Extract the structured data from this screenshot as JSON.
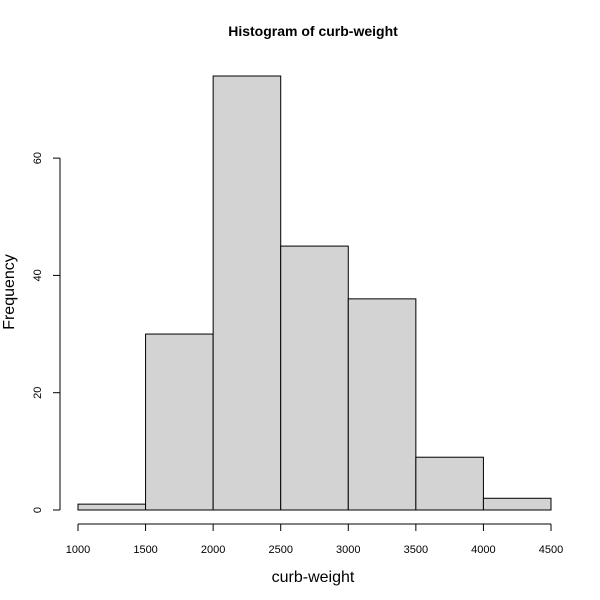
{
  "chart_data": {
    "type": "bar",
    "subtype": "histogram",
    "title": "Histogram of curb-weight",
    "xlabel": "curb-weight",
    "ylabel": "Frequency",
    "bins": [
      {
        "start": 1000,
        "end": 1500,
        "value": 1
      },
      {
        "start": 1500,
        "end": 2000,
        "value": 30
      },
      {
        "start": 2000,
        "end": 2500,
        "value": 74
      },
      {
        "start": 2500,
        "end": 3000,
        "value": 45
      },
      {
        "start": 3000,
        "end": 3500,
        "value": 36
      },
      {
        "start": 3500,
        "end": 4000,
        "value": 9
      },
      {
        "start": 4000,
        "end": 4500,
        "value": 2
      }
    ],
    "xlim": [
      1000,
      4500
    ],
    "ylim": [
      0,
      74
    ],
    "x_ticks": [
      1000,
      1500,
      2000,
      2500,
      3000,
      3500,
      4000,
      4500
    ],
    "y_ticks": [
      0,
      20,
      40,
      60
    ],
    "bar_color": "#d3d3d3",
    "edge_color": "#000000",
    "grid": false,
    "legend": "none"
  }
}
